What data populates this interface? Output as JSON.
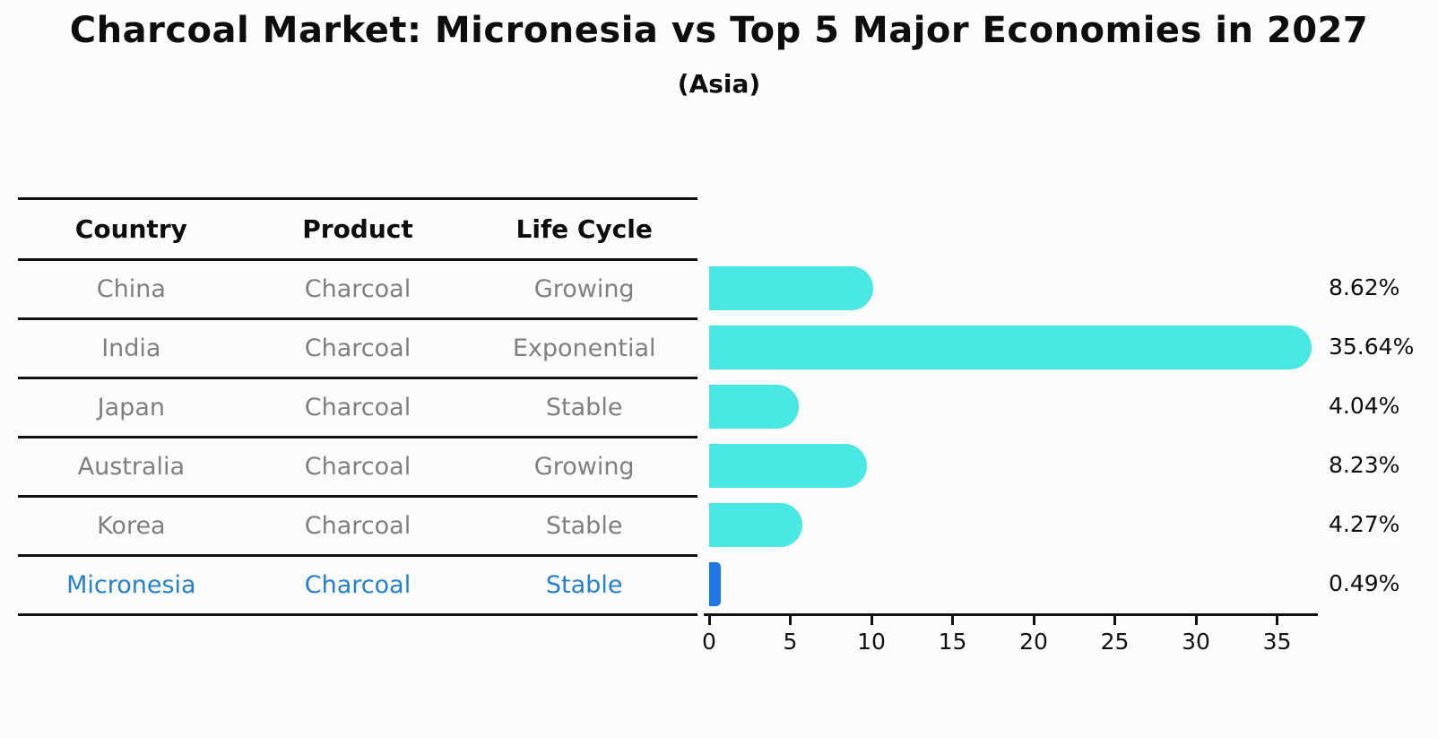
{
  "title": "Charcoal Market: Micronesia vs Top 5 Major Economies in 2027",
  "subtitle": "(Asia)",
  "colors": {
    "bar_primary": "#49e8e2",
    "bar_highlight": "#1c78e8",
    "highlight_text": "#2580d0",
    "row_text": "#808080",
    "header_text": "#111111",
    "axis": "#111111"
  },
  "table": {
    "headers": [
      "Country",
      "Product",
      "Life Cycle"
    ],
    "rows": [
      {
        "country": "China",
        "product": "Charcoal",
        "life_cycle": "Growing",
        "highlight": false
      },
      {
        "country": "India",
        "product": "Charcoal",
        "life_cycle": "Exponential",
        "highlight": false
      },
      {
        "country": "Japan",
        "product": "Charcoal",
        "life_cycle": "Stable",
        "highlight": false
      },
      {
        "country": "Australia",
        "product": "Charcoal",
        "life_cycle": "Growing",
        "highlight": false
      },
      {
        "country": "Korea",
        "product": "Charcoal",
        "life_cycle": "Stable",
        "highlight": false
      },
      {
        "country": "Micronesia",
        "product": "Charcoal",
        "life_cycle": "Stable",
        "highlight": true
      }
    ]
  },
  "chart_data": {
    "type": "bar",
    "orientation": "horizontal",
    "title": "Charcoal Market: Micronesia vs Top 5 Major Economies in 2027",
    "subtitle": "(Asia)",
    "categories": [
      "China",
      "India",
      "Japan",
      "Australia",
      "Korea",
      "Micronesia"
    ],
    "values": [
      8.62,
      35.64,
      4.04,
      8.23,
      4.27,
      0.49
    ],
    "labels": [
      "8.62%",
      "35.64%",
      "4.04%",
      "8.23%",
      "4.27%",
      "0.49%"
    ],
    "highlight_category": "Micronesia",
    "xlabel": "",
    "ylabel": "",
    "xlim": [
      0,
      37.4
    ],
    "xticks": [
      0,
      5,
      10,
      15,
      20,
      25,
      30,
      35
    ],
    "grid": false,
    "legend": false
  }
}
